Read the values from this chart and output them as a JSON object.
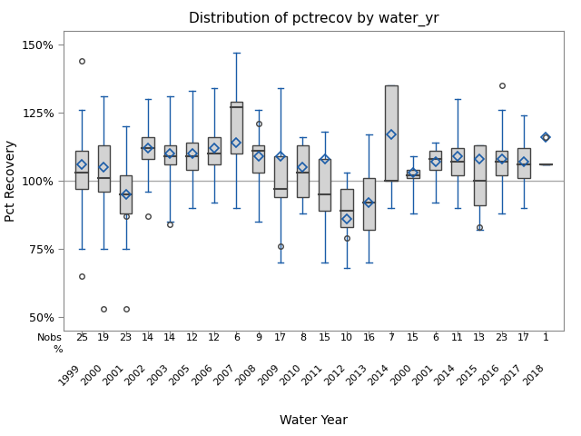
{
  "title": "Distribution of pctrecov by water_yr",
  "xlabel": "Water Year",
  "ylabel": "Pct Recovery",
  "background_color": "#ffffff",
  "plot_bg": "#ffffff",
  "hline_y": 100,
  "yticks": [
    50,
    75,
    100,
    125,
    150
  ],
  "ylim": [
    45,
    155
  ],
  "groups": [
    {
      "label": "1999",
      "nobs": 25,
      "q1": 97,
      "median": 103,
      "q3": 111,
      "whislo": 75,
      "whishi": 126,
      "mean": 106,
      "fliers": [
        65,
        144
      ]
    },
    {
      "label": "2000",
      "nobs": 19,
      "q1": 96,
      "median": 101,
      "q3": 113,
      "whislo": 75,
      "whishi": 131,
      "mean": 105,
      "fliers": [
        53
      ]
    },
    {
      "label": "2001",
      "nobs": 23,
      "q1": 88,
      "median": 95,
      "q3": 102,
      "whislo": 75,
      "whishi": 120,
      "mean": 95,
      "fliers": [
        87,
        53
      ]
    },
    {
      "label": "2002",
      "nobs": 14,
      "q1": 108,
      "median": 112,
      "q3": 116,
      "whislo": 96,
      "whishi": 130,
      "mean": 112,
      "fliers": [
        87
      ]
    },
    {
      "label": "2003",
      "nobs": 14,
      "q1": 106,
      "median": 109,
      "q3": 113,
      "whislo": 85,
      "whishi": 131,
      "mean": 110,
      "fliers": [
        84
      ]
    },
    {
      "label": "2005",
      "nobs": 12,
      "q1": 104,
      "median": 109,
      "q3": 114,
      "whislo": 90,
      "whishi": 133,
      "mean": 110,
      "fliers": []
    },
    {
      "label": "2006",
      "nobs": 12,
      "q1": 106,
      "median": 110,
      "q3": 116,
      "whislo": 92,
      "whishi": 134,
      "mean": 112,
      "fliers": []
    },
    {
      "label": "2007",
      "nobs": 6,
      "q1": 110,
      "median": 127,
      "q3": 129,
      "whislo": 90,
      "whishi": 147,
      "mean": 114,
      "fliers": []
    },
    {
      "label": "2008",
      "nobs": 9,
      "q1": 103,
      "median": 111,
      "q3": 113,
      "whislo": 85,
      "whishi": 126,
      "mean": 109,
      "fliers": [
        121
      ]
    },
    {
      "label": "2009",
      "nobs": 17,
      "q1": 94,
      "median": 97,
      "q3": 109,
      "whislo": 70,
      "whishi": 134,
      "mean": 109,
      "fliers": [
        76
      ]
    },
    {
      "label": "2010",
      "nobs": 8,
      "q1": 94,
      "median": 103,
      "q3": 113,
      "whislo": 88,
      "whishi": 116,
      "mean": 105,
      "fliers": []
    },
    {
      "label": "2011",
      "nobs": 15,
      "q1": 89,
      "median": 95,
      "q3": 108,
      "whislo": 70,
      "whishi": 118,
      "mean": 108,
      "fliers": []
    },
    {
      "label": "2012",
      "nobs": 10,
      "q1": 83,
      "median": 89,
      "q3": 97,
      "whislo": 68,
      "whishi": 103,
      "mean": 86,
      "fliers": [
        79
      ]
    },
    {
      "label": "2013",
      "nobs": 16,
      "q1": 82,
      "median": 92,
      "q3": 101,
      "whislo": 70,
      "whishi": 117,
      "mean": 92,
      "fliers": []
    },
    {
      "label": "2014",
      "nobs": 7,
      "q1": 100,
      "median": 100,
      "q3": 135,
      "whislo": 90,
      "whishi": 135,
      "mean": 117,
      "fliers": []
    },
    {
      "label": "2000",
      "nobs": 15,
      "q1": 101,
      "median": 102,
      "q3": 104,
      "whislo": 88,
      "whishi": 109,
      "mean": 103,
      "fliers": []
    },
    {
      "label": "2001",
      "nobs": 6,
      "q1": 104,
      "median": 108,
      "q3": 111,
      "whislo": 92,
      "whishi": 114,
      "mean": 107,
      "fliers": []
    },
    {
      "label": "2014",
      "nobs": 11,
      "q1": 102,
      "median": 107,
      "q3": 112,
      "whislo": 90,
      "whishi": 130,
      "mean": 109,
      "fliers": []
    },
    {
      "label": "2015",
      "nobs": 13,
      "q1": 91,
      "median": 100,
      "q3": 113,
      "whislo": 82,
      "whishi": 113,
      "mean": 108,
      "fliers": [
        83
      ]
    },
    {
      "label": "2016",
      "nobs": 23,
      "q1": 102,
      "median": 107,
      "q3": 111,
      "whislo": 88,
      "whishi": 126,
      "mean": 108,
      "fliers": [
        135
      ]
    },
    {
      "label": "2017",
      "nobs": 17,
      "q1": 101,
      "median": 106,
      "q3": 112,
      "whislo": 90,
      "whishi": 124,
      "mean": 107,
      "fliers": []
    },
    {
      "label": "2018",
      "nobs": 1,
      "q1": 106,
      "median": 106,
      "q3": 106,
      "whislo": 106,
      "whishi": 106,
      "mean": 116,
      "fliers": [
        116
      ]
    }
  ],
  "box_facecolor": "#d3d3d3",
  "box_edgecolor": "#444444",
  "whisker_color": "#1a5ca8",
  "median_color": "#444444",
  "mean_color": "#1a5ca8",
  "flier_color": "#444444",
  "ref_line_color": "#aaaaaa",
  "nobs_label": "Nobs",
  "percent_label": "%"
}
